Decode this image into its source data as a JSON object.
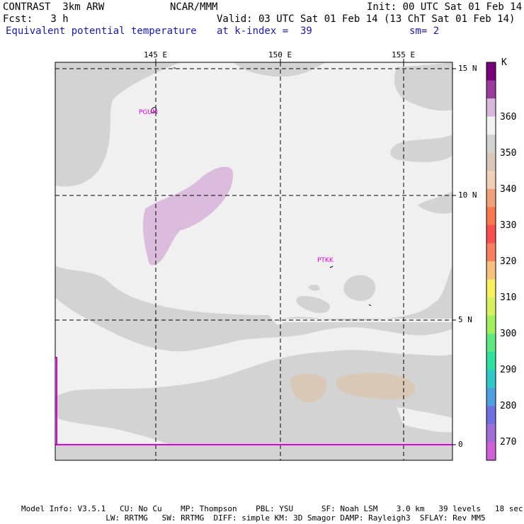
{
  "header": {
    "model": "CONTRAST  3km ARW",
    "center": "NCAR/MMM",
    "init": "Init: 00 UTC Sat 01 Feb 14",
    "fcst": "Fcst:   3 h",
    "valid": "Valid: 03 UTC Sat 01 Feb 14 (13 ChT Sat 01 Feb 14)",
    "field": "Equivalent potential temperature",
    "level": "at k-index =  39",
    "smoothing": "sm= 2"
  },
  "axes": {
    "lon_labels": [
      "145 E",
      "150 E",
      "155 E"
    ],
    "lat_labels": [
      "15 N",
      "10 N",
      "5 N",
      "0"
    ]
  },
  "stations": [
    "PGUM",
    "PTKK"
  ],
  "colorbar": {
    "unit": "K",
    "labels": [
      "360",
      "350",
      "340",
      "330",
      "320",
      "310",
      "300",
      "290",
      "280",
      "270"
    ],
    "colors": [
      "#780078",
      "#9a3c9c",
      "#d8b8dc",
      "#f2f2f2",
      "#d2d2d2",
      "#d8c8b8",
      "#f2d0b8",
      "#f0a07a",
      "#f87850",
      "#f85050",
      "#f88060",
      "#f8c080",
      "#f8f060",
      "#d8f060",
      "#a0f060",
      "#60e880",
      "#30e0a0",
      "#30c8c8",
      "#50a0e0",
      "#7070e0",
      "#a070d8",
      "#d060d8"
    ]
  },
  "footer": {
    "line1": "Model Info: V3.5.1   CU: No Cu    MP: Thompson    PBL: YSU      SF: Noah LSM    3.0 km   39 levels   18 sec",
    "line2": "                  LW: RRTMG   SW: RRTMG  DIFF: simple KM: 3D Smagor DAMP: Rayleigh3  SFLAY: Rev MM5"
  }
}
